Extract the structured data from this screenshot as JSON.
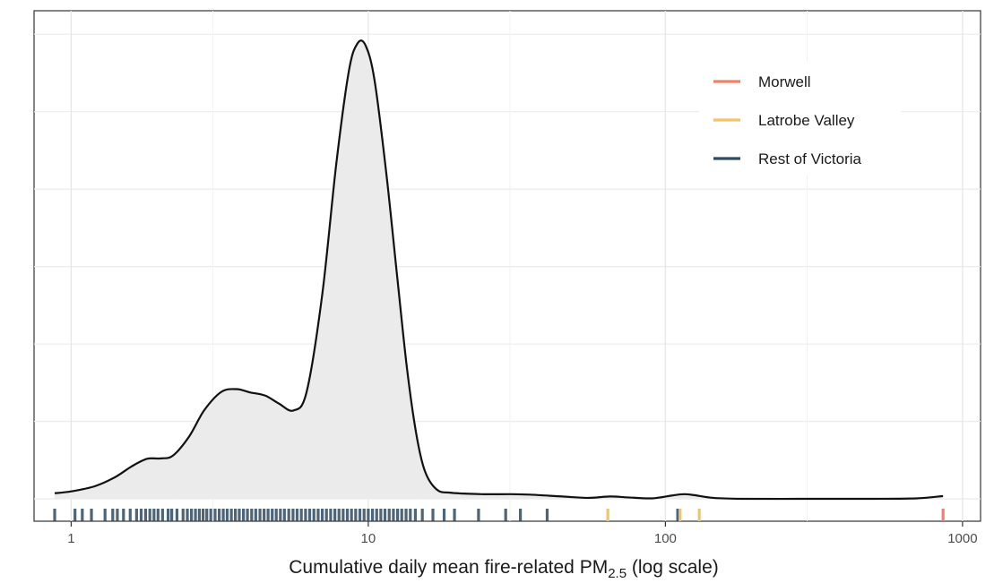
{
  "chart_data": {
    "type": "density",
    "title": "",
    "xlabel_main": "Cumulative daily mean fire-related PM",
    "xlabel_sub": "2.5",
    "xlabel_suffix": " (log scale)",
    "ylabel": "",
    "x_scale": "log10",
    "xlim": [
      0.75,
      1150
    ],
    "ylim": [
      0,
      1.0
    ],
    "x_ticks": [
      {
        "value": 1,
        "label": "1"
      },
      {
        "value": 10,
        "label": "10"
      },
      {
        "value": 100,
        "label": "100"
      },
      {
        "value": 1000,
        "label": "1000"
      }
    ],
    "grid": true,
    "legend_position": "top-right",
    "legend": [
      {
        "name": "Morwell",
        "color": "#F08068"
      },
      {
        "name": "Latrobe Valley",
        "color": "#F2C46A"
      },
      {
        "name": "Rest of Victoria",
        "color": "#2E4A5E"
      }
    ],
    "density_curve": [
      [
        0.88,
        0.012
      ],
      [
        1.0,
        0.016
      ],
      [
        1.2,
        0.027
      ],
      [
        1.4,
        0.046
      ],
      [
        1.6,
        0.07
      ],
      [
        1.8,
        0.086
      ],
      [
        2.0,
        0.087
      ],
      [
        2.2,
        0.093
      ],
      [
        2.5,
        0.135
      ],
      [
        2.8,
        0.19
      ],
      [
        3.2,
        0.23
      ],
      [
        3.6,
        0.236
      ],
      [
        4.0,
        0.229
      ],
      [
        4.5,
        0.222
      ],
      [
        5.0,
        0.205
      ],
      [
        5.6,
        0.19
      ],
      [
        6.2,
        0.23
      ],
      [
        7.0,
        0.44
      ],
      [
        7.8,
        0.72
      ],
      [
        8.6,
        0.92
      ],
      [
        9.2,
        0.98
      ],
      [
        9.8,
        0.975
      ],
      [
        10.5,
        0.9
      ],
      [
        11.5,
        0.7
      ],
      [
        12.5,
        0.48
      ],
      [
        13.5,
        0.28
      ],
      [
        14.5,
        0.14
      ],
      [
        15.5,
        0.06
      ],
      [
        17.0,
        0.02
      ],
      [
        19.0,
        0.013
      ],
      [
        24.0,
        0.01
      ],
      [
        30.0,
        0.01
      ],
      [
        35.0,
        0.009
      ],
      [
        45.0,
        0.005
      ],
      [
        55.0,
        0.002
      ],
      [
        65.0,
        0.005
      ],
      [
        75.0,
        0.003
      ],
      [
        90.0,
        0.001
      ],
      [
        105.0,
        0.007
      ],
      [
        115.0,
        0.01
      ],
      [
        125.0,
        0.008
      ],
      [
        145.0,
        0.002
      ],
      [
        180.0,
        0.0
      ],
      [
        300.0,
        0.0
      ],
      [
        500.0,
        0.0
      ],
      [
        700.0,
        0.001
      ],
      [
        860.0,
        0.006
      ]
    ],
    "rug": {
      "Rest of Victoria": [
        0.88,
        1.03,
        1.09,
        1.17,
        1.3,
        1.38,
        1.43,
        1.5,
        1.58,
        1.66,
        1.72,
        1.78,
        1.84,
        1.9,
        1.96,
        2.03,
        2.12,
        2.18,
        2.27,
        2.38,
        2.46,
        2.54,
        2.62,
        2.7,
        2.78,
        2.86,
        2.95,
        3.05,
        3.15,
        3.25,
        3.35,
        3.46,
        3.57,
        3.68,
        3.8,
        3.92,
        4.05,
        4.18,
        4.32,
        4.46,
        4.6,
        4.75,
        4.9,
        5.06,
        5.22,
        5.4,
        5.58,
        5.76,
        5.95,
        6.15,
        6.35,
        6.56,
        6.78,
        7.0,
        7.23,
        7.47,
        7.72,
        7.97,
        8.23,
        8.5,
        8.78,
        9.07,
        9.37,
        9.68,
        10.0,
        10.33,
        10.67,
        11.02,
        11.38,
        11.76,
        12.15,
        12.55,
        12.96,
        13.4,
        13.85,
        14.4,
        15.2,
        16.5,
        18.0,
        19.5,
        23.5,
        29.0,
        32.5,
        40.0,
        110.0
      ],
      "Latrobe Valley": [
        64.0,
        112.0,
        130.0
      ],
      "Morwell": [
        860.0
      ]
    }
  }
}
